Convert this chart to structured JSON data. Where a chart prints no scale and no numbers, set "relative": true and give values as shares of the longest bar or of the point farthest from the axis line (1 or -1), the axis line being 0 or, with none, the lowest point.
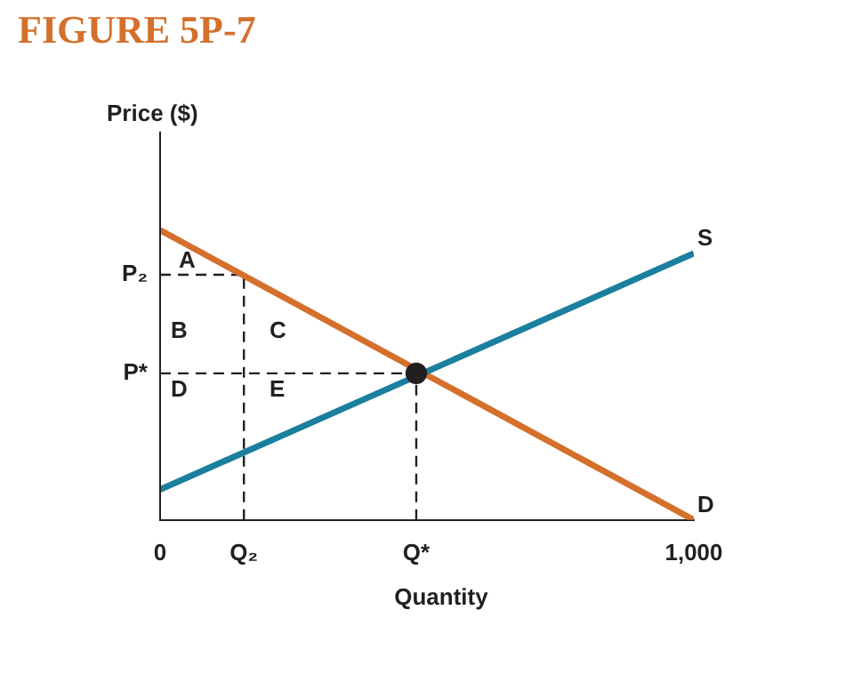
{
  "chart_data": {
    "type": "line",
    "title": "FIGURE 5P-7",
    "xlabel": "Quantity",
    "ylabel": "Price ($)",
    "relative": true,
    "grid": false,
    "legend": false,
    "marker": "none",
    "xlim": [
      0,
      1000
    ],
    "xticks": [
      0,
      {
        "value": 157,
        "label": "Q₂"
      },
      {
        "value": 480,
        "label": "Q*"
      },
      {
        "value": 1000,
        "label": "1,000"
      }
    ],
    "series": [
      {
        "name": "S",
        "color": "#1b7f9e",
        "x": [
          0,
          1000
        ],
        "values": [
          0.105,
          0.92
        ]
      },
      {
        "name": "D",
        "color": "#d4702c",
        "x": [
          0,
          1000
        ],
        "values": [
          1,
          0
        ]
      },
      {
        "color": "#231f20",
        "line_style": "dashed",
        "x": [
          0,
          157
        ],
        "values": [
          0.846,
          0.846
        ]
      },
      {
        "color": "#231f20",
        "line_style": "dashed",
        "x": [
          157,
          157
        ],
        "values": [
          0,
          0.846
        ]
      },
      {
        "color": "#231f20",
        "line_style": "dashed",
        "x": [
          0,
          480
        ],
        "values": [
          0.506,
          0.506
        ]
      },
      {
        "color": "#231f20",
        "line_style": "dashed",
        "x": [
          480,
          480
        ],
        "values": [
          0,
          0.506
        ]
      },
      {
        "type": "scatter",
        "marker": "circle",
        "color": "#231f20",
        "x": [
          480
        ],
        "values": [
          0.506
        ]
      }
    ],
    "annotations": [
      {
        "text": "P₂",
        "x": 0,
        "y": 0.846
      },
      {
        "text": "P*",
        "x": 0,
        "y": 0.506
      },
      "A",
      "B",
      "C",
      "D",
      "E"
    ]
  }
}
